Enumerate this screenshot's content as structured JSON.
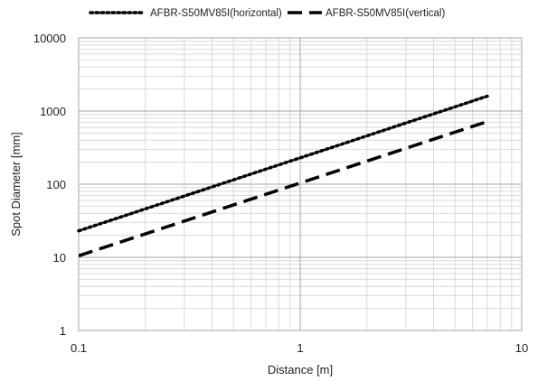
{
  "chart_data": {
    "type": "line",
    "title": "",
    "xlabel": "Distance [m]",
    "ylabel": "Spot Diameter [mm]",
    "x_scale": "log",
    "y_scale": "log",
    "xlim": [
      0.1,
      10
    ],
    "ylim": [
      1,
      10000
    ],
    "x_ticks": [
      "0.1",
      "1",
      "10"
    ],
    "y_ticks": [
      "1",
      "10",
      "100",
      "1000",
      "10000"
    ],
    "grid": true,
    "legend_position": "top",
    "series": [
      {
        "name": "AFBR-S50MV85I(horizontal)",
        "style": "dotted",
        "color": "#000000",
        "x": [
          0.1,
          7
        ],
        "y": [
          23,
          1600
        ]
      },
      {
        "name": "AFBR-S50MV85I(vertical)",
        "style": "dashed",
        "color": "#000000",
        "x": [
          0.1,
          7
        ],
        "y": [
          10.5,
          720
        ]
      }
    ]
  }
}
